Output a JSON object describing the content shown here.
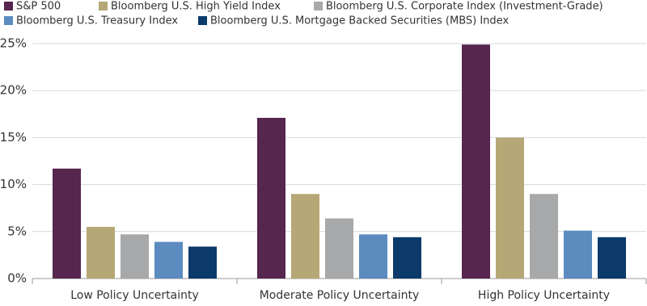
{
  "chart_data": {
    "type": "bar",
    "categories": [
      "Low Policy Uncertainty",
      "Moderate Policy Uncertainty",
      "High Policy Uncertainty"
    ],
    "series": [
      {
        "name": "S&P 500",
        "color": "#56264f",
        "values": [
          11.7,
          17.1,
          24.9
        ]
      },
      {
        "name": "Bloomberg U.S. High Yield Index",
        "color": "#b5a776",
        "values": [
          5.5,
          9.0,
          15.0
        ]
      },
      {
        "name": "Bloomberg U.S. Corporate Index (Investment-Grade)",
        "color": "#a7a8aa",
        "values": [
          4.7,
          6.4,
          9.0
        ]
      },
      {
        "name": "Bloomberg U.S. Treasury Index",
        "color": "#5b8bbf",
        "values": [
          3.9,
          4.7,
          5.1
        ]
      },
      {
        "name": "Bloomberg U.S. Mortgage Backed Securities (MBS) Index",
        "color": "#0b3a6b",
        "values": [
          3.4,
          4.4,
          4.4
        ]
      }
    ],
    "ylim": [
      0,
      25
    ],
    "yticks": [
      {
        "value": 0,
        "label": "0%"
      },
      {
        "value": 5,
        "label": "5%"
      },
      {
        "value": 10,
        "label": "10%"
      },
      {
        "value": 15,
        "label": "15%"
      },
      {
        "value": 20,
        "label": "20%"
      },
      {
        "value": 25,
        "label": "25%"
      }
    ],
    "grid": true
  }
}
